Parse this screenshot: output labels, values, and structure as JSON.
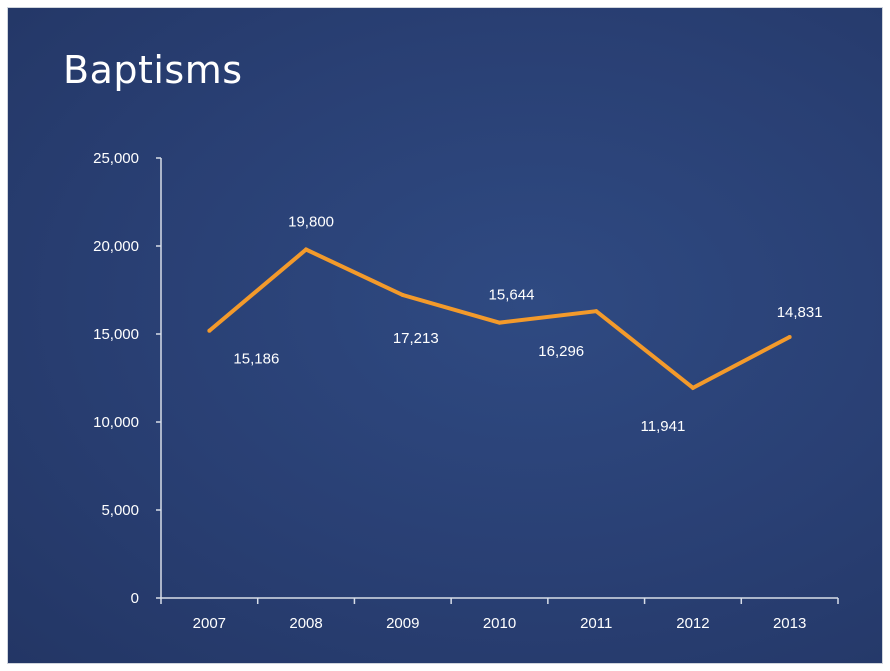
{
  "title": "Baptisms",
  "colors": {
    "background": "#2b4175",
    "line": "#f39a2b",
    "axis": "#d8dee8",
    "text": "#ffffff"
  },
  "chart_data": {
    "type": "line",
    "title": "Baptisms",
    "xlabel": "",
    "ylabel": "",
    "categories": [
      "2007",
      "2008",
      "2009",
      "2010",
      "2011",
      "2012",
      "2013"
    ],
    "series": [
      {
        "values": [
          15186,
          19800,
          17213,
          15644,
          16296,
          11941,
          14831
        ]
      }
    ],
    "data_labels": [
      "15,186",
      "19,800",
      "17,213",
      "15,644",
      "16,296",
      "11,941",
      "14,831"
    ],
    "ylim": [
      0,
      25000
    ],
    "y_ticks": [
      0,
      5000,
      10000,
      15000,
      20000,
      25000
    ],
    "y_tick_labels": [
      "0",
      "5,000",
      "10,000",
      "15,000",
      "20,000",
      "25,000"
    ],
    "grid": false,
    "legend": "none"
  }
}
